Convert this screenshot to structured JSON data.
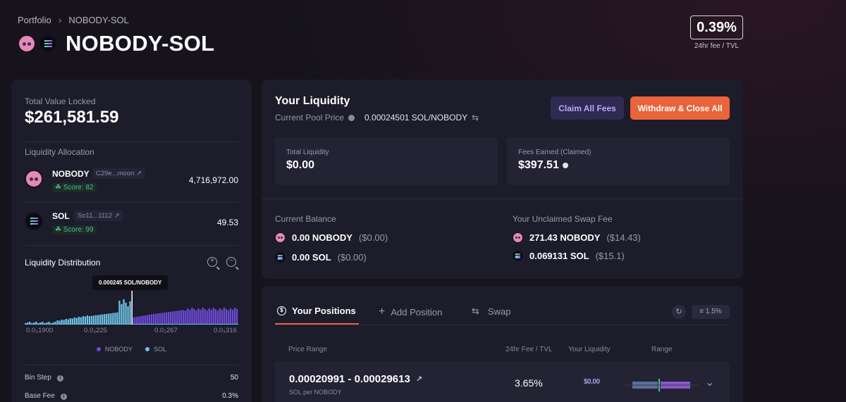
{
  "breadcrumb": {
    "root": "Portfolio",
    "current": "NOBODY-SOL"
  },
  "pair": {
    "title": "NOBODY-SOL"
  },
  "fee_tvl": {
    "value": "0.39%",
    "caption": "24hr fee / TVL"
  },
  "left": {
    "tvl_label": "Total Value Locked",
    "tvl_value": "$261,581.59",
    "allocation_label": "Liquidity Allocation",
    "tokens": [
      {
        "name": "NOBODY",
        "address": "C29e...moon",
        "score": "Score: 82",
        "amount": "4,716,972.00"
      },
      {
        "name": "SOL",
        "address": "So11...1112",
        "score": "Score: 99",
        "amount": "49.53"
      }
    ],
    "distribution_title": "Liquidity Distribution",
    "tooltip": "0.000245 SOL/NOBODY",
    "x_ticks": [
      "0.0₃1900",
      "0.0₃225",
      "0.0₃267",
      "0.0₃316"
    ],
    "legend": [
      {
        "label": "NOBODY",
        "color": "#6f4bd8"
      },
      {
        "label": "SOL",
        "color": "#6fc2e6"
      }
    ],
    "stats": [
      {
        "label": "Bin Step",
        "value": "50"
      },
      {
        "label": "Base Fee",
        "value": "0.3%"
      }
    ]
  },
  "liquidity": {
    "title": "Your Liquidity",
    "pool_price_label": "Current Pool Price",
    "pool_price_value": "0.00024501 SOL/NOBODY",
    "claim_button": "Claim All Fees",
    "withdraw_button": "Withdraw & Close All",
    "total_liquidity_label": "Total Liquidity",
    "total_liquidity_value": "$0.00",
    "fees_earned_label": "Fees Earned (Claimed)",
    "fees_earned_value": "$397.51",
    "current_balance_label": "Current Balance",
    "balances": [
      {
        "amount": "0.00 NOBODY",
        "usd": "($0.00)"
      },
      {
        "amount": "0.00 SOL",
        "usd": "($0.00)"
      }
    ],
    "unclaimed_label": "Your Unclaimed Swap Fee",
    "unclaimed": [
      {
        "amount": "271.43 NOBODY",
        "usd": "($14.43)"
      },
      {
        "amount": "0.069131 SOL",
        "usd": "($15.1)"
      }
    ]
  },
  "positions": {
    "tabs": [
      "Your Positions",
      "Add Position",
      "Swap"
    ],
    "slippage": "1.5%",
    "columns": [
      "Price Range",
      "24hr Fee / TVL",
      "Your Liquidity",
      "Range"
    ],
    "rows": [
      {
        "range": "0.00020991 - 0.00029613",
        "unit": "SOL per NOBODY",
        "fee_tvl": "3.65%",
        "liquidity": "$0.00"
      }
    ]
  },
  "colors": {
    "accent": "#e9633b",
    "purple": "#6f4bd8",
    "sol_blue": "#6fc2e6",
    "score_green": "#3cc980"
  },
  "icons": [
    "chevron-right-icon",
    "nobody-token-icon",
    "sol-token-icon",
    "external-link-icon",
    "leaf-icon",
    "zoom-in-icon",
    "zoom-out-icon",
    "info-icon",
    "swap-arrows-icon",
    "dollar-circle-icon",
    "plus-icon",
    "refresh-icon",
    "sliders-icon",
    "chevron-down-icon"
  ]
}
